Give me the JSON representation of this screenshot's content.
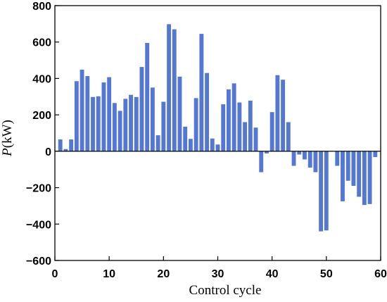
{
  "chart_data": {
    "type": "bar",
    "title": "",
    "xlabel": "Control cycle",
    "ylabel_var": "P",
    "ylabel_unit": "(kW)",
    "xlim": [
      0,
      60
    ],
    "ylim": [
      -600,
      800
    ],
    "xticks": [
      0,
      10,
      20,
      30,
      40,
      50,
      60
    ],
    "yticks": [
      -600,
      -400,
      -200,
      0,
      200,
      400,
      600,
      800
    ],
    "xtick_labels": [
      "0",
      "10",
      "20",
      "30",
      "40",
      "50",
      "60"
    ],
    "ytick_labels": [
      "−600",
      "−400",
      "−200",
      "0",
      "200",
      "400",
      "600",
      "800"
    ],
    "bar_color": "#5577d4",
    "grid": false,
    "legend": "none",
    "x": [
      1,
      2,
      3,
      4,
      5,
      6,
      7,
      8,
      9,
      10,
      11,
      12,
      13,
      14,
      15,
      16,
      17,
      18,
      19,
      20,
      21,
      22,
      23,
      24,
      25,
      26,
      27,
      28,
      29,
      30,
      31,
      32,
      33,
      34,
      35,
      36,
      37,
      38,
      39,
      40,
      41,
      42,
      43,
      44,
      45,
      46,
      47,
      48,
      49,
      50,
      51,
      52,
      53,
      54,
      55,
      56,
      57,
      58,
      59
    ],
    "values": [
      65,
      12,
      65,
      385,
      448,
      413,
      298,
      302,
      378,
      407,
      265,
      222,
      288,
      310,
      298,
      463,
      595,
      350,
      88,
      272,
      698,
      670,
      410,
      135,
      68,
      292,
      645,
      430,
      70,
      37,
      258,
      340,
      373,
      268,
      160,
      278,
      130,
      -115,
      -12,
      215,
      418,
      393,
      160,
      -80,
      -18,
      -45,
      -90,
      -115,
      -440,
      -435,
      0,
      -80,
      -275,
      -162,
      -190,
      -250,
      -295,
      -290,
      -32
    ]
  }
}
